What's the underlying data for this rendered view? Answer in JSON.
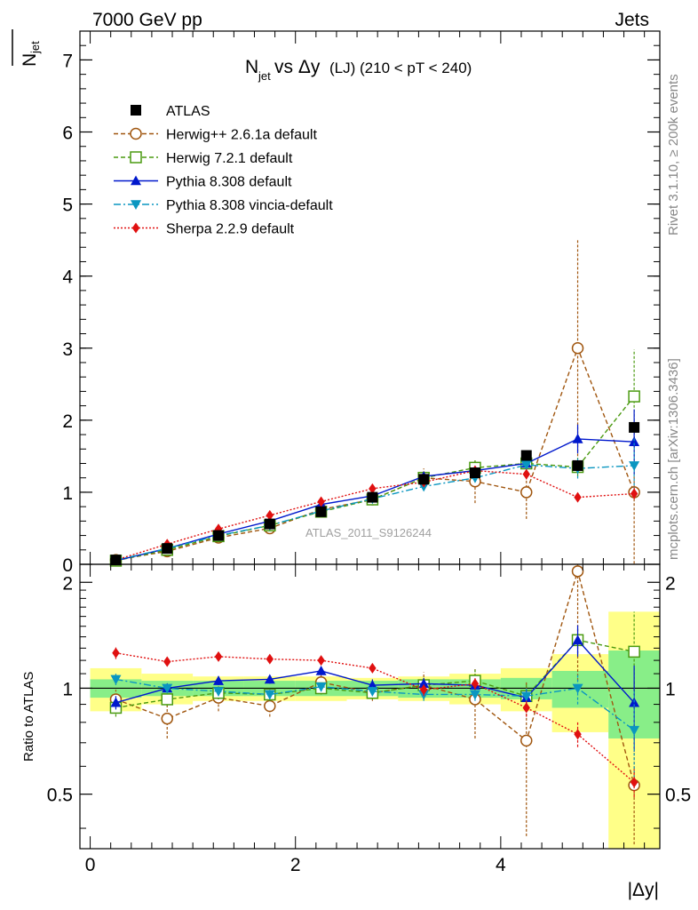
{
  "header": {
    "left": "7000 GeV pp",
    "right": "Jets"
  },
  "side_labels": {
    "rivet": "Rivet 3.1.10, ≥ 200k events",
    "mcplots": "mcplots.cern.ch [arXiv:1306.3436]"
  },
  "chart_data": {
    "type": "line",
    "title_main": "N",
    "title_main_sub": "jet",
    "title_vs": " vs Δy",
    "title_cond": " (LJ) (210 < pT < 240)",
    "ylabel_main": "N",
    "ylabel_main_sub": "jet",
    "ylabel_ratio": "Ratio to ATLAS",
    "xlabel": "|Δy|",
    "watermark": "ATLAS_2011_S9126244",
    "xlim": [
      -0.1,
      5.55
    ],
    "ylim_main": [
      0,
      7.4
    ],
    "ylim_ratio": [
      0.35,
      2.25
    ],
    "main_yticks": [
      {
        "v": 0,
        "label": "0"
      },
      {
        "v": 1,
        "label": "1"
      },
      {
        "v": 2,
        "label": "2"
      },
      {
        "v": 3,
        "label": "3"
      },
      {
        "v": 4,
        "label": "4"
      },
      {
        "v": 5,
        "label": "5"
      },
      {
        "v": 6,
        "label": "6"
      },
      {
        "v": 7,
        "label": "7"
      }
    ],
    "ratio_yticks": [
      {
        "v": 0.5,
        "label": "0.5"
      },
      {
        "v": 1,
        "label": "1"
      },
      {
        "v": 2,
        "label": "2"
      }
    ],
    "xticks": [
      {
        "v": 0,
        "label": "0"
      },
      {
        "v": 2,
        "label": "2"
      },
      {
        "v": 4,
        "label": "4"
      }
    ],
    "x": [
      0.25,
      0.75,
      1.25,
      1.75,
      2.25,
      2.75,
      3.25,
      3.75,
      4.25,
      4.75,
      5.3
    ],
    "bin_edges": [
      0,
      0.5,
      1.0,
      1.5,
      2.0,
      2.5,
      3.0,
      3.5,
      4.0,
      4.5,
      5.05,
      5.55
    ],
    "data": {
      "name": "ATLAS",
      "color": "#000000",
      "values": [
        0.06,
        0.22,
        0.4,
        0.56,
        0.73,
        0.93,
        1.18,
        1.27,
        1.51,
        1.37,
        1.9
      ],
      "band_green": [
        0.06,
        0.05,
        0.05,
        0.05,
        0.05,
        0.05,
        0.06,
        0.06,
        0.07,
        0.12,
        0.28
      ],
      "band_yellow": [
        0.14,
        0.1,
        0.08,
        0.08,
        0.08,
        0.07,
        0.08,
        0.1,
        0.14,
        0.25,
        0.65
      ]
    },
    "series": [
      {
        "name": "Herwig++ 2.6.1a default",
        "color": "#a0560f",
        "dash": "5,3",
        "marker": "circle-open",
        "values": [
          0.06,
          0.18,
          0.37,
          0.5,
          0.76,
          0.9,
          1.2,
          1.15,
          1.0,
          3.0,
          1.0
        ],
        "errors": [
          0.01,
          0.02,
          0.03,
          0.03,
          0.04,
          0.05,
          0.13,
          0.3,
          0.37,
          1.5,
          0.99
        ],
        "ratio": [
          0.93,
          0.82,
          0.94,
          0.89,
          1.04,
          0.97,
          1.02,
          0.93,
          0.71,
          2.15,
          0.53
        ],
        "ratio_errors": [
          0.06,
          0.1,
          0.08,
          0.06,
          0.05,
          0.05,
          0.09,
          0.21,
          0.33,
          1.1,
          0.52
        ]
      },
      {
        "name": "Herwig 7.2.1 default",
        "color": "#4a9a10",
        "dash": "5,3",
        "marker": "square-open",
        "values": [
          0.05,
          0.2,
          0.39,
          0.54,
          0.73,
          0.9,
          1.2,
          1.34,
          1.4,
          1.35,
          2.33
        ],
        "errors": [
          0.01,
          0.02,
          0.03,
          0.03,
          0.04,
          0.04,
          0.06,
          0.12,
          0.12,
          0.13,
          0.65
        ],
        "ratio": [
          0.88,
          0.93,
          0.97,
          0.96,
          1.0,
          0.97,
          1.02,
          1.05,
          0.95,
          1.37,
          1.27
        ],
        "ratio_errors": [
          0.05,
          0.04,
          0.04,
          0.04,
          0.04,
          0.04,
          0.05,
          0.09,
          0.08,
          0.11,
          0.38
        ]
      },
      {
        "name": "Pythia 8.308 default",
        "color": "#0018cc",
        "dash": "",
        "marker": "triangle-up",
        "values": [
          0.05,
          0.22,
          0.42,
          0.6,
          0.83,
          0.95,
          1.22,
          1.3,
          1.4,
          1.74,
          1.7
        ],
        "errors": [
          0.01,
          0.02,
          0.03,
          0.03,
          0.04,
          0.05,
          0.06,
          0.06,
          0.07,
          0.2,
          0.45
        ],
        "ratio": [
          0.91,
          1.0,
          1.05,
          1.06,
          1.12,
          1.02,
          1.03,
          1.02,
          0.94,
          1.37,
          0.91
        ],
        "ratio_errors": [
          0.04,
          0.03,
          0.03,
          0.03,
          0.03,
          0.04,
          0.04,
          0.04,
          0.05,
          0.14,
          0.25
        ]
      },
      {
        "name": "Pythia 8.308 vincia-default",
        "color": "#0a96c0",
        "dash": "8,3,2,3",
        "marker": "triangle-down",
        "values": [
          0.06,
          0.22,
          0.4,
          0.54,
          0.74,
          0.91,
          1.08,
          1.2,
          1.38,
          1.33,
          1.37
        ],
        "errors": [
          0.01,
          0.02,
          0.02,
          0.03,
          0.03,
          0.04,
          0.05,
          0.06,
          0.06,
          0.14,
          0.4
        ],
        "ratio": [
          1.06,
          1.0,
          0.98,
          0.96,
          1.01,
          0.98,
          0.96,
          0.96,
          0.95,
          1.0,
          0.76
        ],
        "ratio_errors": [
          0.04,
          0.03,
          0.03,
          0.03,
          0.03,
          0.03,
          0.04,
          0.04,
          0.05,
          0.1,
          0.22
        ]
      },
      {
        "name": "Sherpa 2.2.9 default",
        "color": "#e01010",
        "dash": "2,2",
        "marker": "diamond",
        "values": [
          0.06,
          0.28,
          0.49,
          0.68,
          0.87,
          1.05,
          1.14,
          1.3,
          1.25,
          0.93,
          0.98
        ],
        "errors": [
          0.01,
          0.02,
          0.03,
          0.04,
          0.04,
          0.05,
          0.05,
          0.06,
          0.07,
          0.06,
          0.08
        ],
        "ratio": [
          1.26,
          1.19,
          1.23,
          1.21,
          1.2,
          1.14,
          0.99,
          1.03,
          0.88,
          0.74,
          0.54
        ],
        "ratio_errors": [
          0.05,
          0.03,
          0.03,
          0.03,
          0.03,
          0.03,
          0.04,
          0.04,
          0.05,
          0.06,
          0.05
        ]
      }
    ]
  }
}
